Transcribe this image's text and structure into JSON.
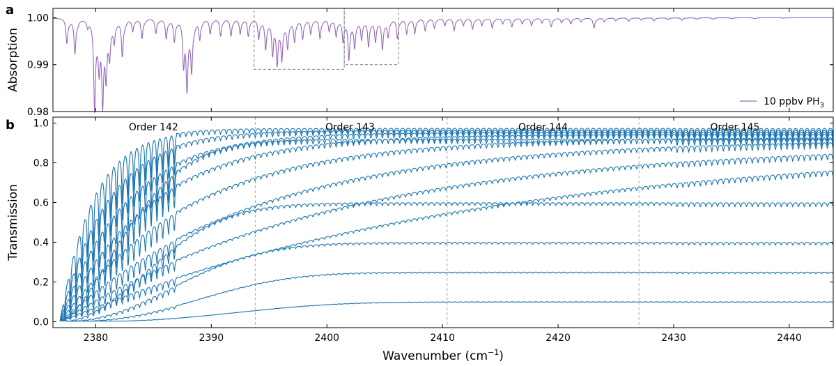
{
  "chart_data": [
    {
      "panel": "a",
      "type": "line",
      "ylabel": "Absorption",
      "xlim": [
        2376.3,
        2443.8
      ],
      "ylim": [
        0.98,
        1.002
      ],
      "yticks": [
        0.98,
        0.99,
        1.0
      ],
      "ytick_labels": [
        "0.98",
        "0.99",
        "1.00"
      ],
      "xticks": [
        2380,
        2390,
        2400,
        2410,
        2420,
        2430,
        2440
      ],
      "legend": {
        "label_prefix": "10 ppbv PH",
        "label_sub": "3",
        "placement": "lower-right"
      },
      "series": [
        {
          "name": "10 ppbv PH3",
          "color": "#9467bd",
          "baseline": 1.0,
          "lines": [
            {
              "x": 2377.5,
              "d": 0.005
            },
            {
              "x": 2378.2,
              "d": 0.007
            },
            {
              "x": 2379.3,
              "d": 0.0015
            },
            {
              "x": 2379.9,
              "d": 0.018
            },
            {
              "x": 2380.3,
              "d": 0.0085
            },
            {
              "x": 2380.6,
              "d": 0.0155
            },
            {
              "x": 2380.9,
              "d": 0.0095
            },
            {
              "x": 2381.2,
              "d": 0.006
            },
            {
              "x": 2381.6,
              "d": 0.004
            },
            {
              "x": 2382.3,
              "d": 0.0075
            },
            {
              "x": 2383.2,
              "d": 0.0025
            },
            {
              "x": 2384.0,
              "d": 0.004
            },
            {
              "x": 2385.2,
              "d": 0.003
            },
            {
              "x": 2386.1,
              "d": 0.004
            },
            {
              "x": 2386.8,
              "d": 0.0045
            },
            {
              "x": 2387.6,
              "d": 0.009
            },
            {
              "x": 2387.9,
              "d": 0.013
            },
            {
              "x": 2388.3,
              "d": 0.0095
            },
            {
              "x": 2389.0,
              "d": 0.004
            },
            {
              "x": 2389.9,
              "d": 0.003
            },
            {
              "x": 2390.8,
              "d": 0.0035
            },
            {
              "x": 2391.7,
              "d": 0.0035
            },
            {
              "x": 2392.5,
              "d": 0.003
            },
            {
              "x": 2393.2,
              "d": 0.0035
            },
            {
              "x": 2394.1,
              "d": 0.004
            },
            {
              "x": 2394.7,
              "d": 0.006
            },
            {
              "x": 2395.3,
              "d": 0.007
            },
            {
              "x": 2395.7,
              "d": 0.0085
            },
            {
              "x": 2396.1,
              "d": 0.0075
            },
            {
              "x": 2396.6,
              "d": 0.0055
            },
            {
              "x": 2397.2,
              "d": 0.0045
            },
            {
              "x": 2397.9,
              "d": 0.004
            },
            {
              "x": 2398.6,
              "d": 0.003
            },
            {
              "x": 2399.4,
              "d": 0.004
            },
            {
              "x": 2400.2,
              "d": 0.0025
            },
            {
              "x": 2400.8,
              "d": 0.0035
            },
            {
              "x": 2401.4,
              "d": 0.0045
            },
            {
              "x": 2401.9,
              "d": 0.008
            },
            {
              "x": 2402.4,
              "d": 0.0055
            },
            {
              "x": 2403.0,
              "d": 0.004
            },
            {
              "x": 2403.6,
              "d": 0.0055
            },
            {
              "x": 2404.2,
              "d": 0.0045
            },
            {
              "x": 2404.8,
              "d": 0.006
            },
            {
              "x": 2405.3,
              "d": 0.0035
            },
            {
              "x": 2406.1,
              "d": 0.004
            },
            {
              "x": 2406.9,
              "d": 0.003
            },
            {
              "x": 2407.6,
              "d": 0.003
            },
            {
              "x": 2408.5,
              "d": 0.0025
            },
            {
              "x": 2409.3,
              "d": 0.002
            },
            {
              "x": 2410.2,
              "d": 0.0015
            },
            {
              "x": 2411.0,
              "d": 0.0025
            },
            {
              "x": 2411.8,
              "d": 0.0015
            },
            {
              "x": 2412.6,
              "d": 0.0022
            },
            {
              "x": 2413.4,
              "d": 0.0015
            },
            {
              "x": 2414.3,
              "d": 0.002
            },
            {
              "x": 2415.2,
              "d": 0.0012
            },
            {
              "x": 2416.0,
              "d": 0.0018
            },
            {
              "x": 2416.9,
              "d": 0.0012
            },
            {
              "x": 2417.7,
              "d": 0.0015
            },
            {
              "x": 2418.6,
              "d": 0.001
            },
            {
              "x": 2419.4,
              "d": 0.0018
            },
            {
              "x": 2420.3,
              "d": 0.001
            },
            {
              "x": 2421.1,
              "d": 0.0012
            },
            {
              "x": 2422.0,
              "d": 0.0008
            },
            {
              "x": 2423.1,
              "d": 0.002
            },
            {
              "x": 2424.0,
              "d": 0.0008
            },
            {
              "x": 2425.0,
              "d": 0.0006
            },
            {
              "x": 2426.1,
              "d": 0.0007
            },
            {
              "x": 2427.2,
              "d": 0.0005
            },
            {
              "x": 2428.3,
              "d": 0.0006
            },
            {
              "x": 2429.5,
              "d": 0.0004
            },
            {
              "x": 2430.7,
              "d": 0.0005
            },
            {
              "x": 2432.0,
              "d": 0.0003
            },
            {
              "x": 2433.4,
              "d": 0.0003
            },
            {
              "x": 2435.0,
              "d": 0.0002
            },
            {
              "x": 2437.0,
              "d": 0.0002
            },
            {
              "x": 2439.5,
              "d": 0.0001
            }
          ]
        }
      ],
      "annotations": [
        {
          "type": "dashed-box",
          "x0": 2393.7,
          "x1": 2401.5,
          "y0": 0.989,
          "y1": 1.002
        },
        {
          "type": "dashed-box",
          "x0": 2401.5,
          "x1": 2406.2,
          "y0": 0.99,
          "y1": 1.002
        }
      ]
    },
    {
      "panel": "b",
      "type": "line",
      "xlabel": "Wavenumber (cm",
      "xlabel_sup": "−1",
      "xlabel_end": ")",
      "ylabel": "Transmission",
      "xlim": [
        2376.3,
        2443.8
      ],
      "ylim": [
        -0.03,
        1.03
      ],
      "xticks": [
        2380,
        2390,
        2400,
        2410,
        2420,
        2430,
        2440
      ],
      "xtick_labels": [
        "2380",
        "2390",
        "2400",
        "2410",
        "2420",
        "2430",
        "2440"
      ],
      "yticks": [
        0.0,
        0.2,
        0.4,
        0.6,
        0.8,
        1.0
      ],
      "ytick_labels": [
        "0.0",
        "0.2",
        "0.4",
        "0.6",
        "0.8",
        "1.0"
      ],
      "order_boundaries": [
        2393.8,
        2410.4,
        2427.0
      ],
      "orders": [
        {
          "label": "Order 142",
          "x": 2385.0
        },
        {
          "label": "Order 143",
          "x": 2402.0
        },
        {
          "label": "Order 144",
          "x": 2418.7
        },
        {
          "label": "Order 145",
          "x": 2435.3
        }
      ],
      "series_color": "#1f77b4",
      "ripple_spacing": 0.5,
      "curves": [
        {
          "amp": 0.975,
          "rate": 0.36
        },
        {
          "amp": 0.965,
          "rate": 0.25
        },
        {
          "amp": 0.955,
          "rate": 0.18
        },
        {
          "amp": 0.945,
          "rate": 0.13
        },
        {
          "amp": 0.93,
          "rate": 0.09
        },
        {
          "amp": 0.92,
          "rate": 0.06
        },
        {
          "amp": 0.9,
          "rate": 0.042
        },
        {
          "amp": 0.9,
          "rate": 0.028
        },
        {
          "amp": 0.92,
          "rate": 0.0043,
          "pow": 1.6
        },
        {
          "amp": 0.6,
          "rate": 0.001,
          "pow": 2.0
        },
        {
          "amp": 0.4,
          "rate": 0.00038,
          "pow": 2.2
        },
        {
          "amp": 0.25,
          "rate": 0.00012,
          "pow": 2.5
        },
        {
          "amp": 0.1,
          "rate": 3e-05,
          "pow": 2.8
        }
      ]
    }
  ]
}
